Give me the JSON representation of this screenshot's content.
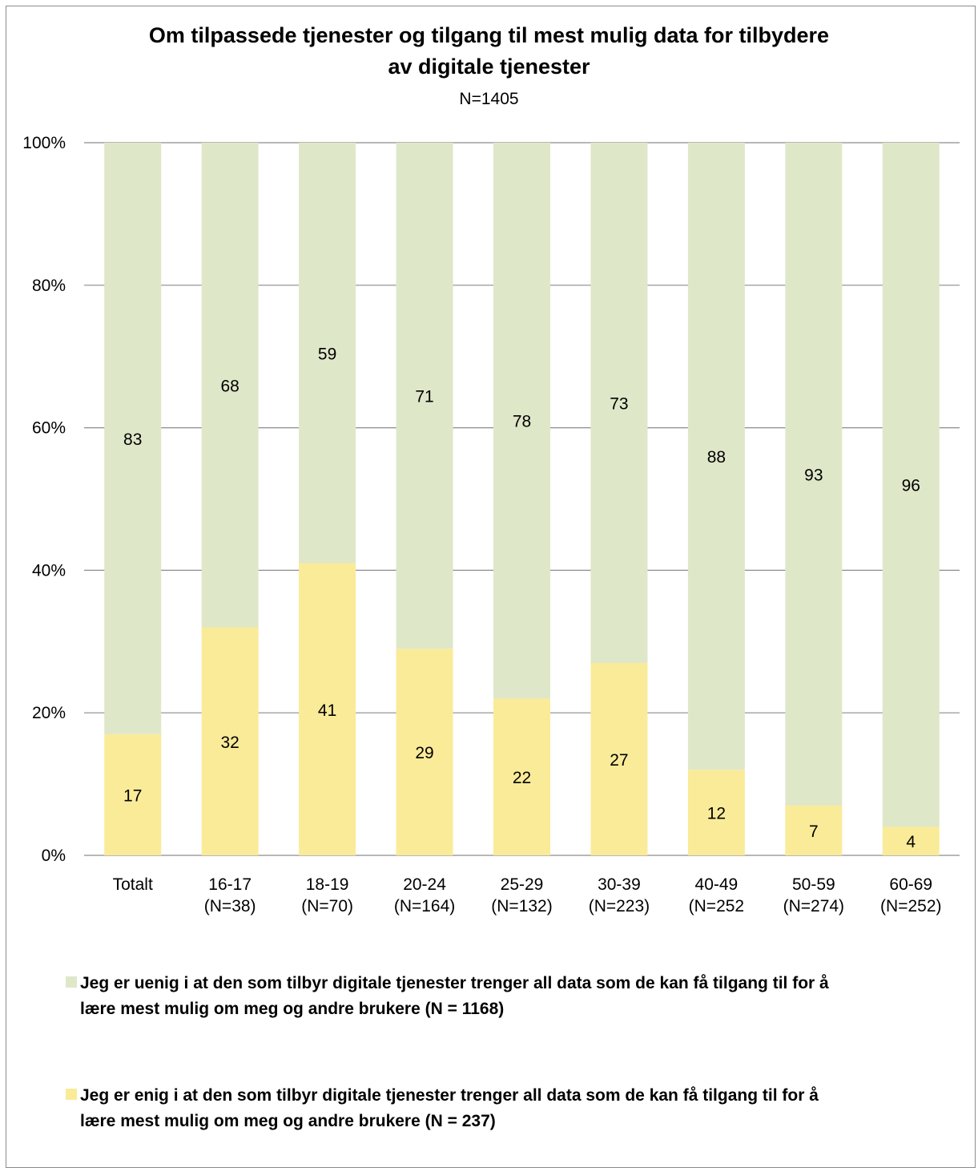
{
  "chart_data": {
    "type": "bar",
    "stacked": true,
    "percent": true,
    "title": "Om tilpassede tjenester og tilgang til mest mulig data for tilbydere av digitale tjenester",
    "title_lines": [
      "Om tilpassede tjenester og tilgang til mest mulig data for tilbydere",
      "av digitale tjenester"
    ],
    "subtitle": "N=1405",
    "categories": [
      "Totalt",
      "16-17 (N=38)",
      "18-19 (N=70)",
      "20-24 (N=164)",
      "25-29 (N=132)",
      "30-39 (N=223)",
      "40-49 (N=252",
      "50-59 (N=274)",
      "60-69 (N=252)"
    ],
    "category_lines": [
      [
        "Totalt"
      ],
      [
        "16-17",
        "(N=38)"
      ],
      [
        "18-19",
        "(N=70)"
      ],
      [
        "20-24",
        "(N=164)"
      ],
      [
        "25-29",
        "(N=132)"
      ],
      [
        "30-39",
        "(N=223)"
      ],
      [
        "40-49",
        "(N=252"
      ],
      [
        "50-59",
        "(N=274)"
      ],
      [
        "60-69",
        "(N=252)"
      ]
    ],
    "series": [
      {
        "name": "Jeg er enig i at den som tilbyr digitale tjenester trenger all data som de kan få tilgang til for å lære mest mulig om meg og andre brukere (N = 237)",
        "color": "#faeb99",
        "values": [
          17,
          32,
          41,
          29,
          22,
          27,
          12,
          7,
          4
        ]
      },
      {
        "name": "Jeg er uenig i at den som tilbyr digitale tjenester trenger all data som de kan få tilgang til for å lære mest mulig om meg og andre brukere (N = 1168)",
        "color": "#dfe7c9",
        "values": [
          83,
          68,
          59,
          71,
          78,
          73,
          88,
          93,
          96
        ]
      }
    ],
    "ylim": [
      0,
      100
    ],
    "yticks": [
      "0%",
      "20%",
      "40%",
      "60%",
      "80%",
      "100%"
    ],
    "grid": true,
    "legend_position": "bottom"
  },
  "legend": {
    "items": [
      {
        "label_lines": [
          "Jeg er uenig i at den som tilbyr digitale tjenester trenger all data som de kan få tilgang til for å",
          "lære mest mulig om meg og andre brukere (N = 1168)"
        ],
        "color": "#dfe7c9"
      },
      {
        "label_lines": [
          "Jeg er enig i at den som tilbyr digitale tjenester trenger all data som de kan få tilgang til for å",
          "lære mest mulig om meg og andre brukere (N = 237)"
        ],
        "color": "#faeb99"
      }
    ]
  }
}
